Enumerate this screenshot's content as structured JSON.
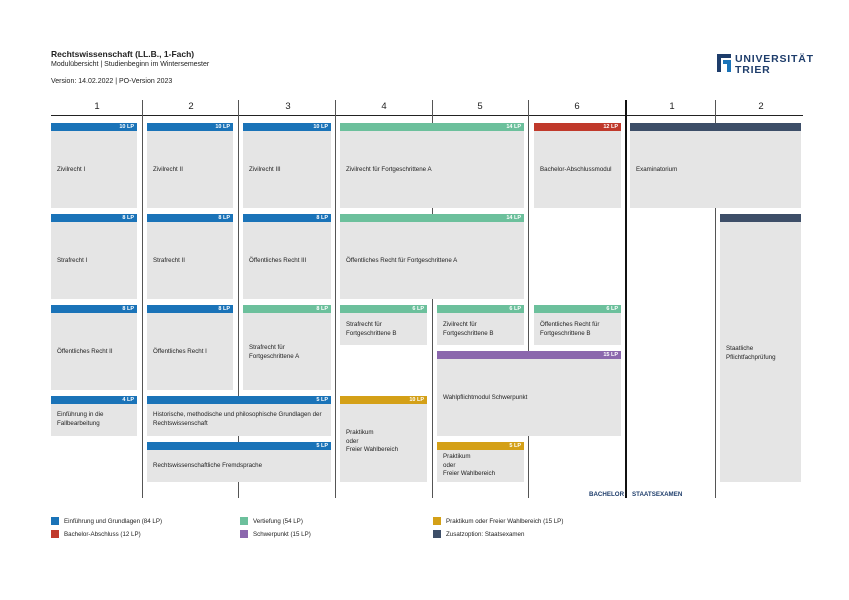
{
  "header": {
    "title": "Rechtswissenschaft (LL.B., 1-Fach)",
    "subtitle": "Modulübersicht  |  Studienbeginn im Wintersemester",
    "version": "Version: 14.02.2022  |  PO-Version 2023"
  },
  "logo": {
    "line1": "UNIVERSITÄT",
    "line2": "TRIER"
  },
  "columns": [
    "1",
    "2",
    "3",
    "4",
    "5",
    "6",
    "1",
    "2"
  ],
  "modules": [
    {
      "id": "zivil1",
      "label": "Zivilrecht I",
      "lp": "10 LP",
      "color": "#1a73b8"
    },
    {
      "id": "zivil2",
      "label": "Zivilrecht II",
      "lp": "10 LP",
      "color": "#1a73b8"
    },
    {
      "id": "zivil3",
      "label": "Zivilrecht III",
      "lp": "10 LP",
      "color": "#1a73b8"
    },
    {
      "id": "zivilfa",
      "label": "Zivilrecht für Fortgeschrittene A",
      "lp": "14 LP",
      "color": "#6cc09c"
    },
    {
      "id": "bachelor",
      "label": "Bachelor-Abschlussmodul",
      "lp": "12 LP",
      "color": "#c0392b"
    },
    {
      "id": "exam",
      "label": "Examinatorium",
      "lp": "",
      "color": "#3d4e68"
    },
    {
      "id": "straf1",
      "label": "Strafrecht I",
      "lp": "8 LP",
      "color": "#1a73b8"
    },
    {
      "id": "straf2",
      "label": "Strafrecht II",
      "lp": "8 LP",
      "color": "#1a73b8"
    },
    {
      "id": "oer3",
      "label": "Öffentliches Recht III",
      "lp": "8 LP",
      "color": "#1a73b8"
    },
    {
      "id": "oerfa",
      "label": "Öffentliches Recht für Fortgeschrittene A",
      "lp": "14 LP",
      "color": "#6cc09c"
    },
    {
      "id": "oer2",
      "label": "Öffentliches Recht II",
      "lp": "8 LP",
      "color": "#1a73b8"
    },
    {
      "id": "oer1",
      "label": "Öffentliches Recht I",
      "lp": "8 LP",
      "color": "#1a73b8"
    },
    {
      "id": "straffa",
      "label": "Strafrecht für Fortgeschrittene A",
      "lp": "8 LP",
      "color": "#6cc09c"
    },
    {
      "id": "straffb",
      "label": "Strafrecht für Fortgeschrittene B",
      "lp": "6 LP",
      "color": "#6cc09c"
    },
    {
      "id": "zivilfb",
      "label": "Zivilrecht für Fortgeschrittene B",
      "lp": "6 LP",
      "color": "#6cc09c"
    },
    {
      "id": "oerfb",
      "label": "Öffentliches Recht für Fortgeschrittene B",
      "lp": "6 LP",
      "color": "#6cc09c"
    },
    {
      "id": "staat",
      "label": "Staatliche Pflichtfachprüfung",
      "lp": "",
      "color": "#3d4e68"
    },
    {
      "id": "schwer",
      "label": "Wahlpflichtmodul Schwerpunkt",
      "lp": "15 LP",
      "color": "#8b67ad"
    },
    {
      "id": "einf",
      "label": "Einführung in die Fallbearbeitung",
      "lp": "4 LP",
      "color": "#1a73b8"
    },
    {
      "id": "hist",
      "label": "Historische, methodische und philosophische Grundlagen der Rechtswissenschaft",
      "lp": "5 LP",
      "color": "#1a73b8"
    },
    {
      "id": "prak1",
      "label": "Praktikum\noder\nFreier Wahlbereich",
      "lp": "10 LP",
      "color": "#d4a017"
    },
    {
      "id": "fremd",
      "label": "Rechtswissenschaftliche Fremdsprache",
      "lp": "5 LP",
      "color": "#1a73b8"
    },
    {
      "id": "prak2",
      "label": "Praktikum\noder\nFreier Wahlbereich",
      "lp": "5 LP",
      "color": "#d4a017"
    }
  ],
  "footer": {
    "bachelor": "BACHELOR",
    "staatsexamen": "STAATSEXAMEN"
  },
  "legend": [
    {
      "label": "Einführung und Grundlagen (84 LP)",
      "color": "#1a73b8"
    },
    {
      "label": "Bachelor-Abschluss (12 LP)",
      "color": "#c0392b"
    },
    {
      "label": "Vertiefung (54 LP)",
      "color": "#6cc09c"
    },
    {
      "label": "Schwerpunkt (15 LP)",
      "color": "#8b67ad"
    },
    {
      "label": "Praktikum oder  Freier Wahlbereich (15 LP)",
      "color": "#d4a017"
    },
    {
      "label": "Zusatzoption: Staatsexamen",
      "color": "#3d4e68"
    }
  ]
}
